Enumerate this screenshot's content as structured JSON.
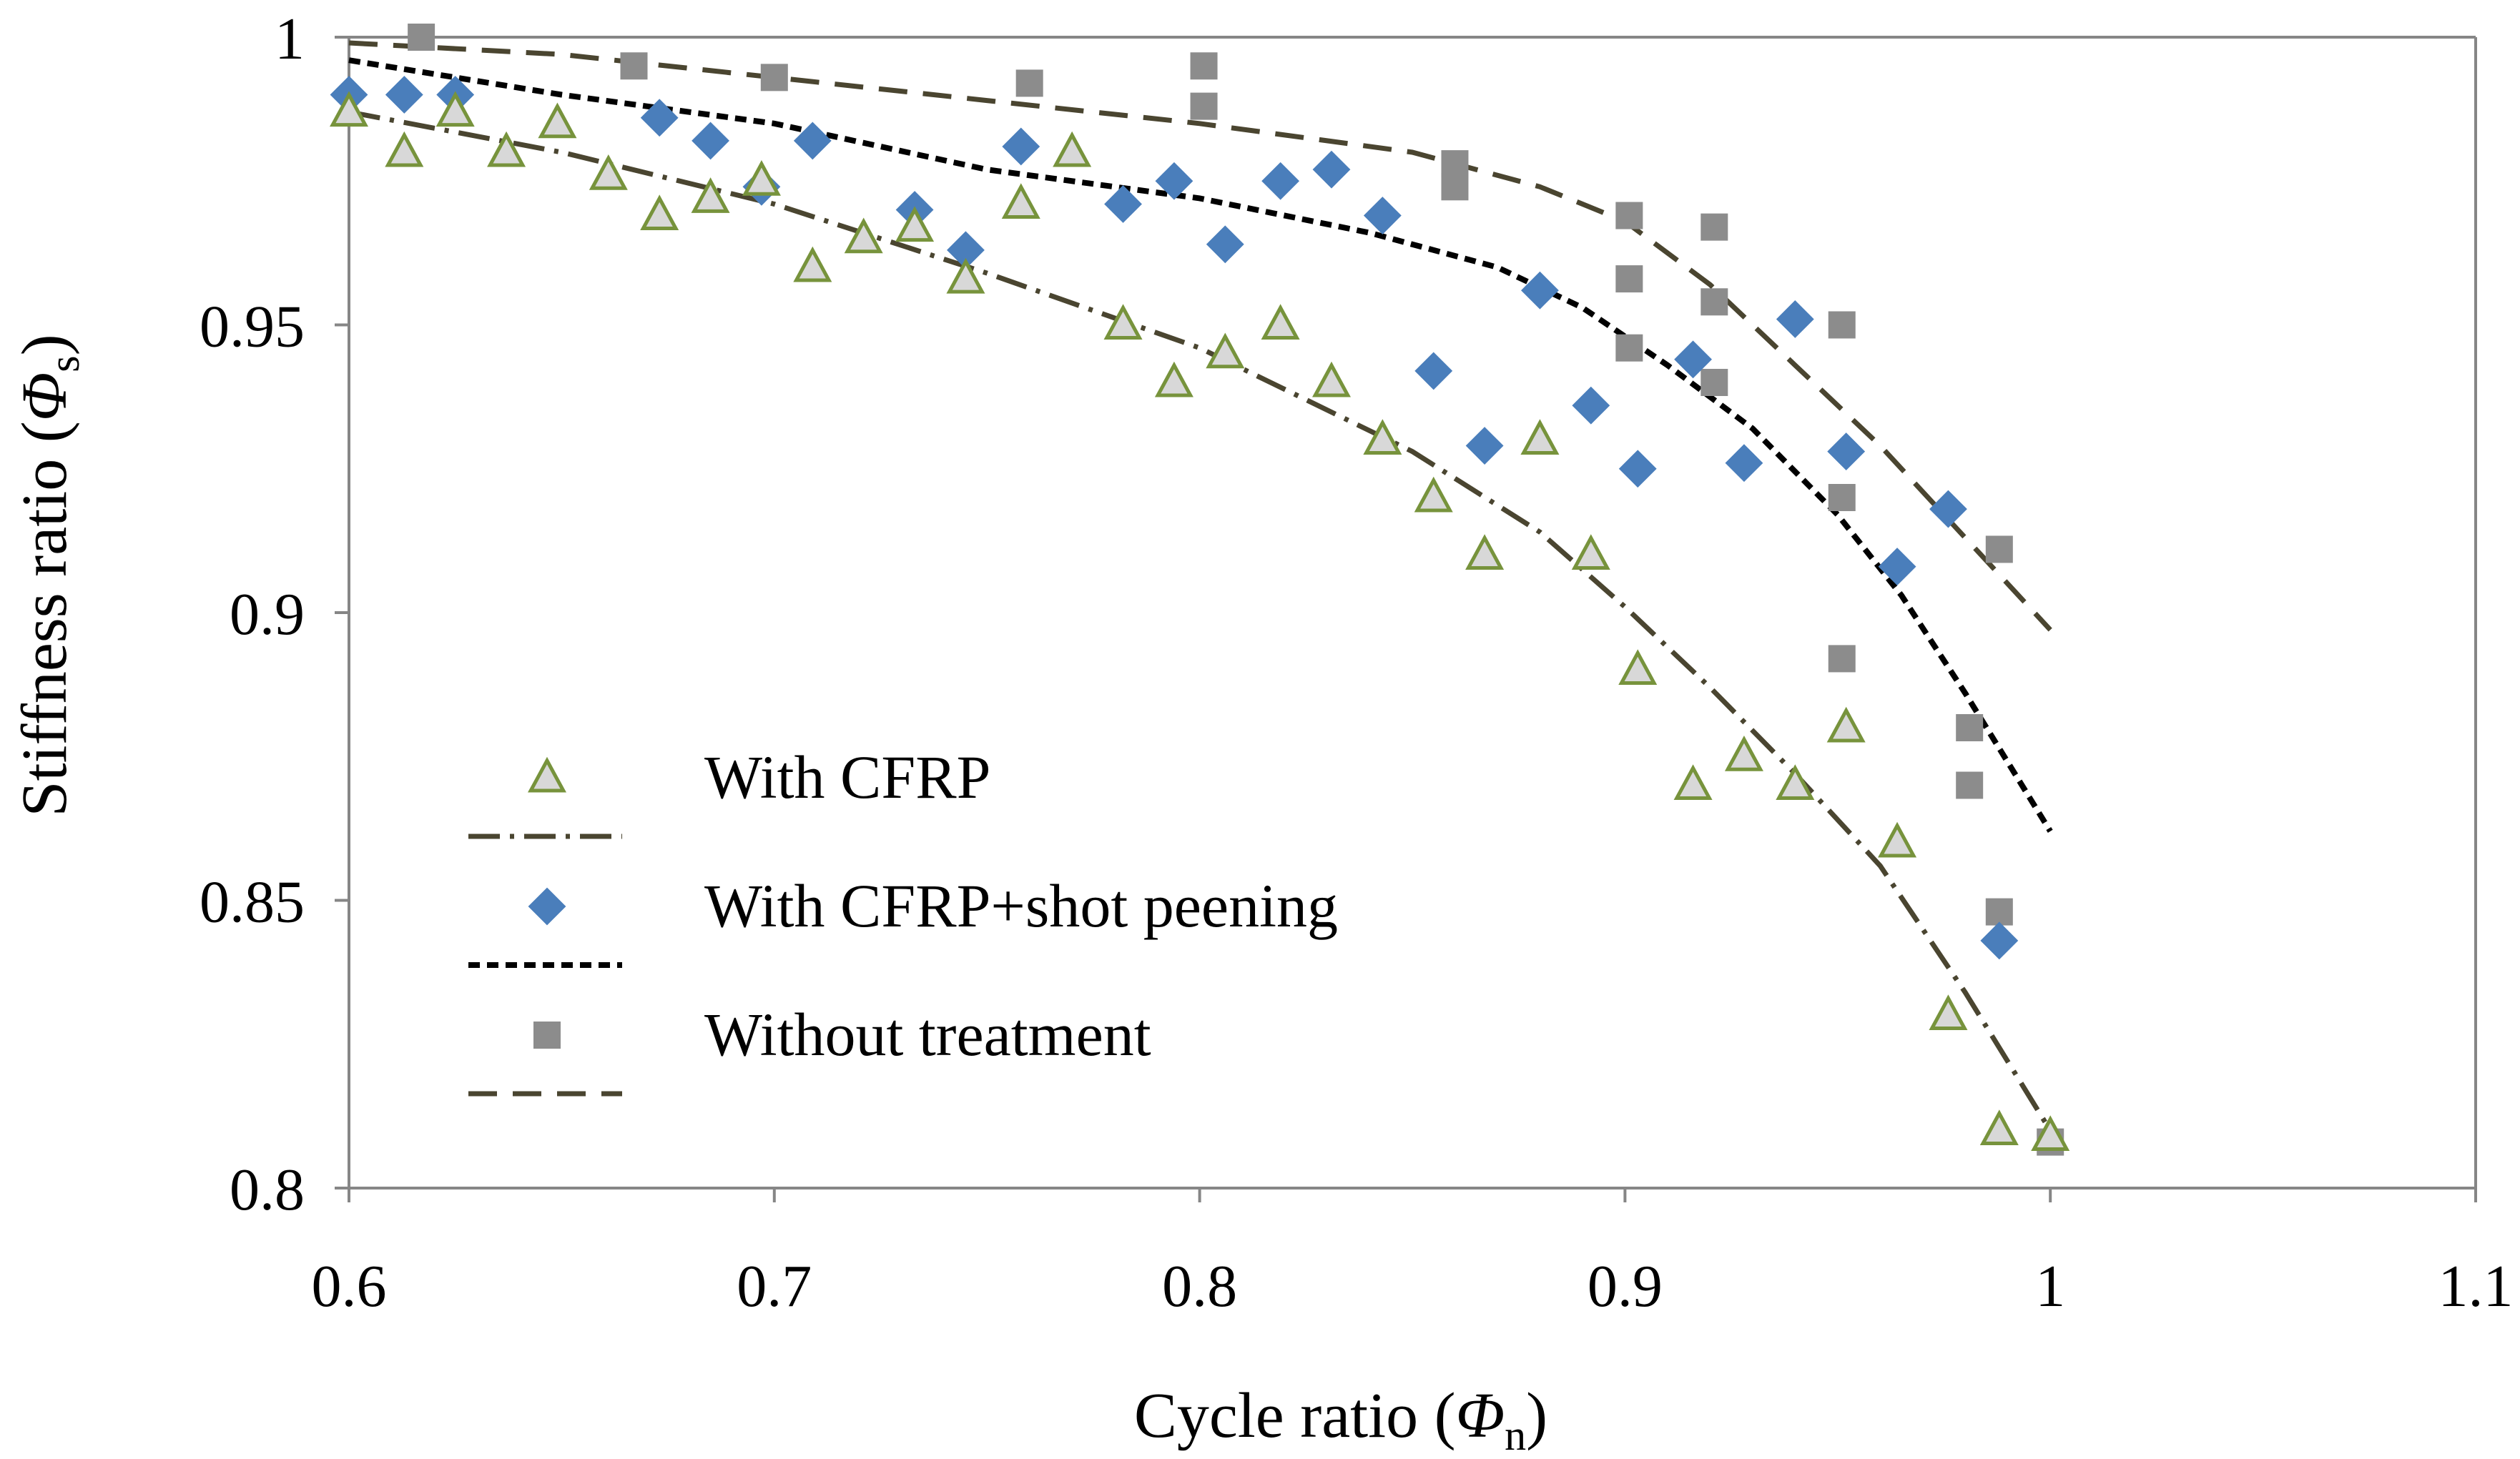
{
  "chart_data": {
    "type": "scatter",
    "title": "",
    "xlabel": {
      "prefix": "Cycle ratio (",
      "symbol": "Φ",
      "subscript": "n",
      "suffix": ")"
    },
    "ylabel": {
      "prefix": "Stiffness ratio (",
      "symbol": "Φ",
      "subscript": "s",
      "suffix": ")"
    },
    "xlim": [
      0.6,
      1.1
    ],
    "ylim": [
      0.8,
      1.0
    ],
    "x_ticks": [
      0.6,
      0.7,
      0.8,
      0.9,
      1.0,
      1.1
    ],
    "x_tick_labels": [
      "0.6",
      "0.7",
      "0.8",
      "0.9",
      "1",
      "1.1"
    ],
    "y_ticks": [
      0.8,
      0.85,
      0.9,
      0.95,
      1.0
    ],
    "y_tick_labels": [
      "0.8",
      "0.85",
      "0.9",
      "0.95",
      "1"
    ],
    "grid": false,
    "legend_position": "lower-left",
    "colors": {
      "cfrp_marker_stroke": "#77933C",
      "cfrp_marker_fill": "#D8D8D8",
      "peening_marker": "#4A7EBB",
      "untreated_marker": "#8C8C8C",
      "fit_line_dark": "#4A4530",
      "fit_line_black": "#000000",
      "frame": "#868686"
    },
    "series": [
      {
        "name": "With CFRP",
        "kind": "points",
        "marker": "triangle",
        "points": [
          [
            0.6,
            0.987
          ],
          [
            0.613,
            0.98
          ],
          [
            0.625,
            0.987
          ],
          [
            0.637,
            0.98
          ],
          [
            0.649,
            0.985
          ],
          [
            0.661,
            0.976
          ],
          [
            0.673,
            0.969
          ],
          [
            0.685,
            0.972
          ],
          [
            0.697,
            0.975
          ],
          [
            0.709,
            0.96
          ],
          [
            0.721,
            0.965
          ],
          [
            0.733,
            0.967
          ],
          [
            0.745,
            0.958
          ],
          [
            0.758,
            0.971
          ],
          [
            0.77,
            0.98
          ],
          [
            0.782,
            0.95
          ],
          [
            0.794,
            0.94
          ],
          [
            0.806,
            0.945
          ],
          [
            0.819,
            0.95
          ],
          [
            0.831,
            0.94
          ],
          [
            0.843,
            0.93
          ],
          [
            0.855,
            0.92
          ],
          [
            0.867,
            0.91
          ],
          [
            0.88,
            0.93
          ],
          [
            0.892,
            0.91
          ],
          [
            0.903,
            0.89
          ],
          [
            0.916,
            0.87
          ],
          [
            0.928,
            0.875
          ],
          [
            0.94,
            0.87
          ],
          [
            0.952,
            0.88
          ],
          [
            0.964,
            0.86
          ],
          [
            0.976,
            0.83
          ],
          [
            0.988,
            0.81
          ],
          [
            1.0,
            0.809
          ]
        ]
      },
      {
        "name": "",
        "legend_for": "With CFRP",
        "kind": "line",
        "dash": "dash-dot",
        "points": [
          [
            0.6,
            0.987
          ],
          [
            0.65,
            0.98
          ],
          [
            0.7,
            0.971
          ],
          [
            0.75,
            0.959
          ],
          [
            0.8,
            0.946
          ],
          [
            0.85,
            0.928
          ],
          [
            0.88,
            0.914
          ],
          [
            0.9,
            0.901
          ],
          [
            0.92,
            0.887
          ],
          [
            0.94,
            0.872
          ],
          [
            0.96,
            0.856
          ],
          [
            0.98,
            0.834
          ],
          [
            1.0,
            0.81
          ]
        ]
      },
      {
        "name": "With CFRP+shot peening",
        "kind": "points",
        "marker": "diamond",
        "points": [
          [
            0.6,
            0.99
          ],
          [
            0.613,
            0.99
          ],
          [
            0.625,
            0.99
          ],
          [
            0.673,
            0.986
          ],
          [
            0.685,
            0.982
          ],
          [
            0.697,
            0.974
          ],
          [
            0.709,
            0.982
          ],
          [
            0.733,
            0.97
          ],
          [
            0.745,
            0.963
          ],
          [
            0.758,
            0.981
          ],
          [
            0.782,
            0.971
          ],
          [
            0.794,
            0.975
          ],
          [
            0.806,
            0.964
          ],
          [
            0.819,
            0.975
          ],
          [
            0.831,
            0.977
          ],
          [
            0.843,
            0.969
          ],
          [
            0.855,
            0.942
          ],
          [
            0.867,
            0.929
          ],
          [
            0.88,
            0.956
          ],
          [
            0.892,
            0.936
          ],
          [
            0.903,
            0.925
          ],
          [
            0.916,
            0.944
          ],
          [
            0.928,
            0.926
          ],
          [
            0.94,
            0.951
          ],
          [
            0.952,
            0.928
          ],
          [
            0.964,
            0.908
          ],
          [
            0.976,
            0.918
          ],
          [
            0.988,
            0.843
          ]
        ]
      },
      {
        "name": "",
        "legend_for": "With CFRP+shot peening",
        "kind": "line",
        "dash": "short-dash",
        "points": [
          [
            0.6,
            0.996
          ],
          [
            0.65,
            0.99
          ],
          [
            0.7,
            0.985
          ],
          [
            0.75,
            0.977
          ],
          [
            0.8,
            0.972
          ],
          [
            0.84,
            0.966
          ],
          [
            0.87,
            0.96
          ],
          [
            0.89,
            0.953
          ],
          [
            0.91,
            0.943
          ],
          [
            0.93,
            0.932
          ],
          [
            0.95,
            0.917
          ],
          [
            0.965,
            0.903
          ],
          [
            0.98,
            0.886
          ],
          [
            1.0,
            0.862
          ]
        ]
      },
      {
        "name": "Without treatment",
        "kind": "points",
        "marker": "square",
        "points": [
          [
            0.617,
            1.0
          ],
          [
            0.667,
            0.995
          ],
          [
            0.7,
            0.993
          ],
          [
            0.76,
            0.992
          ],
          [
            0.801,
            0.995
          ],
          [
            0.801,
            0.988
          ],
          [
            0.86,
            0.978
          ],
          [
            0.86,
            0.974
          ],
          [
            0.901,
            0.969
          ],
          [
            0.901,
            0.958
          ],
          [
            0.901,
            0.946
          ],
          [
            0.921,
            0.967
          ],
          [
            0.921,
            0.954
          ],
          [
            0.921,
            0.94
          ],
          [
            0.951,
            0.95
          ],
          [
            0.951,
            0.92
          ],
          [
            0.951,
            0.892
          ],
          [
            0.981,
            0.88
          ],
          [
            0.981,
            0.87
          ],
          [
            0.988,
            0.911
          ],
          [
            0.988,
            0.848
          ],
          [
            1.0,
            0.808
          ]
        ]
      },
      {
        "name": "",
        "legend_for": "Without treatment",
        "kind": "line",
        "dash": "long-dash",
        "points": [
          [
            0.6,
            0.999
          ],
          [
            0.65,
            0.997
          ],
          [
            0.7,
            0.993
          ],
          [
            0.75,
            0.989
          ],
          [
            0.8,
            0.985
          ],
          [
            0.85,
            0.98
          ],
          [
            0.88,
            0.974
          ],
          [
            0.9,
            0.968
          ],
          [
            0.92,
            0.957
          ],
          [
            0.94,
            0.943
          ],
          [
            0.96,
            0.929
          ],
          [
            0.98,
            0.913
          ],
          [
            1.0,
            0.897
          ]
        ]
      }
    ],
    "legend": [
      {
        "label": "With CFRP",
        "marker": "triangle"
      },
      {
        "label": "",
        "line": "dash-dot"
      },
      {
        "label": "With CFRP+shot peening",
        "marker": "diamond"
      },
      {
        "label": "",
        "line": "short-dash"
      },
      {
        "label": "Without treatment",
        "marker": "square"
      },
      {
        "label": "",
        "line": "long-dash"
      }
    ]
  }
}
